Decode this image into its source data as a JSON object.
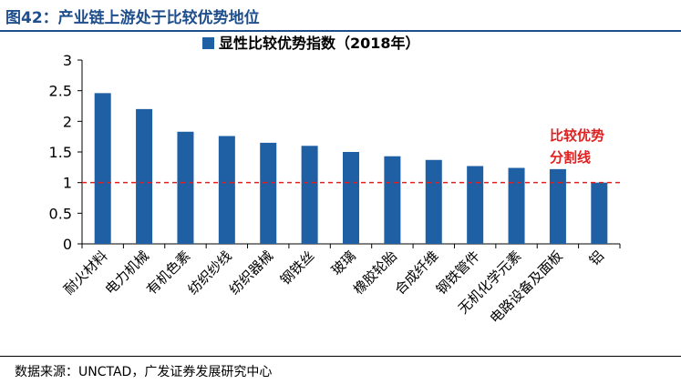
{
  "figure": {
    "title": "图42：产业链上游处于比较优势地位",
    "source": "数据来源：UNCTAD，广发证券发展研究中心"
  },
  "chart_data": {
    "type": "bar",
    "legend": {
      "label": "显性比较优势指数（2018年）",
      "position": "top"
    },
    "categories": [
      "耐火材料",
      "电力机械",
      "有机色素",
      "纺织纱线",
      "纺织器械",
      "钢铁丝",
      "玻璃",
      "橡胶轮胎",
      "合成纤维",
      "钢铁管件",
      "无机化学元素",
      "电路设备及面板",
      "铝"
    ],
    "series": [
      {
        "name": "显性比较优势指数（2018年）",
        "values": [
          2.46,
          2.2,
          1.83,
          1.76,
          1.65,
          1.6,
          1.5,
          1.43,
          1.37,
          1.27,
          1.24,
          1.22,
          1.0
        ]
      }
    ],
    "ylim": [
      0,
      3
    ],
    "yticks": [
      "0",
      "0.5",
      "1",
      "1.5",
      "2",
      "2.5",
      "3"
    ],
    "yticks_values": [
      0,
      0.5,
      1,
      1.5,
      2,
      2.5,
      3
    ],
    "grid": false,
    "reference_line": {
      "value": 1,
      "style": "dashed",
      "label_line1": "比较优势",
      "label_line2": "分割线"
    },
    "colors": {
      "bar": "#1f5fa3",
      "reference": "#e02020",
      "title": "#1f4e8c"
    }
  }
}
